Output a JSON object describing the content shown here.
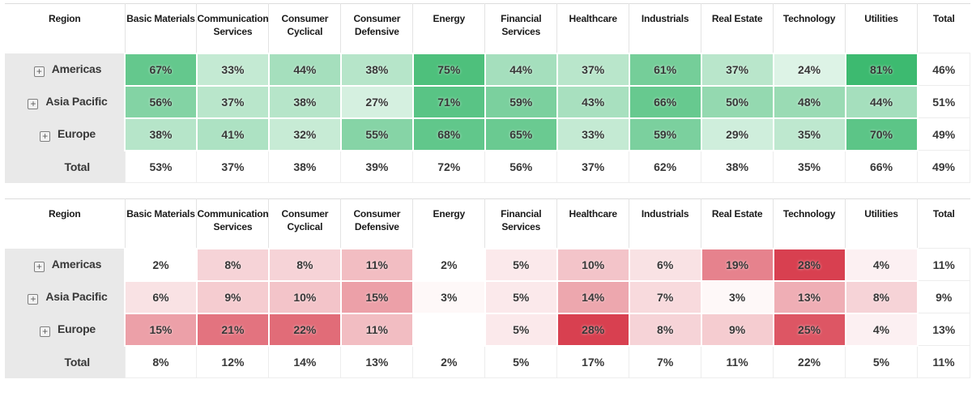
{
  "header": {
    "region_label": "Region",
    "total_label": "Total"
  },
  "row_total_label": "Total",
  "expand_icon_glyph": "+",
  "unit": "%",
  "colors": {
    "label_column_bg": "#e9e9e9",
    "header_separator": "#e3e3e3",
    "table_top_border": "#dcdcdc",
    "plain_cell_border": "#ededed",
    "green_low": "#ddf3e6",
    "green_high": "#3dba70",
    "red_low": "#ffffff",
    "red_high": "#d84050"
  },
  "chart_data": [
    {
      "type": "heatmap",
      "name": "green-heatmap",
      "unit": "%",
      "palette": {
        "low": "#ddf3e6",
        "high": "#3dba70"
      },
      "domain": [
        24,
        81
      ],
      "columns": [
        "Basic Materials",
        "Communication Services",
        "Consumer Cyclical",
        "Consumer Defensive",
        "Energy",
        "Financial Services",
        "Healthcare",
        "Industrials",
        "Real Estate",
        "Technology",
        "Utilities"
      ],
      "rows": [
        "Americas",
        "Asia Pacific",
        "Europe"
      ],
      "values": [
        [
          67,
          33,
          44,
          38,
          75,
          44,
          37,
          61,
          37,
          24,
          81
        ],
        [
          56,
          37,
          38,
          27,
          71,
          59,
          43,
          66,
          50,
          48,
          44
        ],
        [
          38,
          41,
          32,
          55,
          68,
          65,
          33,
          59,
          29,
          35,
          70
        ]
      ],
      "row_totals": [
        46,
        51,
        49
      ],
      "col_totals": [
        53,
        37,
        38,
        39,
        72,
        56,
        37,
        62,
        38,
        35,
        66
      ],
      "grand_total": 49
    },
    {
      "type": "heatmap",
      "name": "red-heatmap",
      "unit": "%",
      "palette": {
        "low": "#ffffff",
        "high": "#d84050"
      },
      "domain": [
        2,
        28
      ],
      "columns": [
        "Basic Materials",
        "Communication Services",
        "Consumer Cyclical",
        "Consumer Defensive",
        "Energy",
        "Financial Services",
        "Healthcare",
        "Industrials",
        "Real Estate",
        "Technology",
        "Utilities"
      ],
      "rows": [
        "Americas",
        "Asia Pacific",
        "Europe"
      ],
      "values": [
        [
          2,
          8,
          8,
          11,
          2,
          5,
          10,
          6,
          19,
          28,
          4
        ],
        [
          6,
          9,
          10,
          15,
          3,
          5,
          14,
          7,
          3,
          13,
          8
        ],
        [
          15,
          21,
          22,
          11,
          null,
          5,
          28,
          8,
          9,
          25,
          4
        ]
      ],
      "row_totals": [
        11,
        9,
        13
      ],
      "col_totals": [
        8,
        12,
        14,
        13,
        2,
        5,
        17,
        7,
        11,
        22,
        5
      ],
      "grand_total": 11
    }
  ]
}
